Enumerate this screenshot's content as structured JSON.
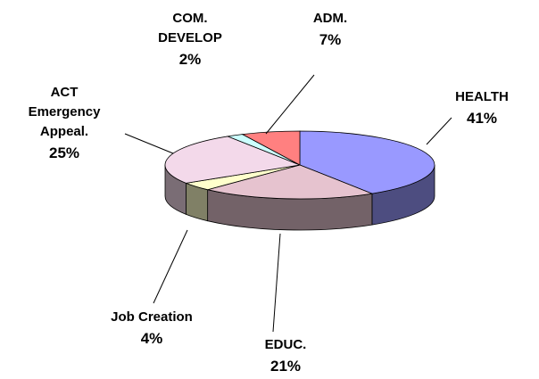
{
  "chart_data": {
    "type": "pie",
    "categories": [
      "HEALTH",
      "EDUC.",
      "Job Creation",
      "ACT Emergency Appeal.",
      "COM. DEVELOP",
      "ADM."
    ],
    "values": [
      41,
      21,
      4,
      25,
      2,
      7
    ],
    "value_labels": [
      "41%",
      "21%",
      "4%",
      "25%",
      "2%",
      "7%"
    ],
    "colors": [
      "#9999ff",
      "#e6c3cf",
      "#ffffcc",
      "#f3d9ea",
      "#ccffff",
      "#ff8080"
    ]
  }
}
